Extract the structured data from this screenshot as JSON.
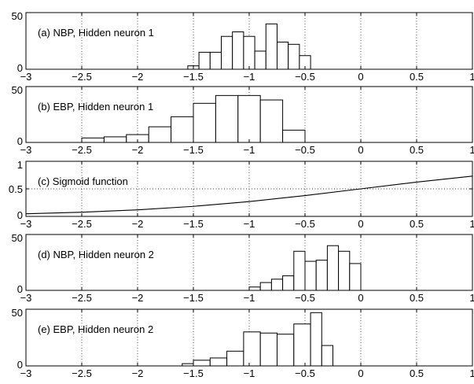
{
  "chart_data": [
    {
      "type": "bar",
      "label": "(a) NBP, Hidden neuron 1",
      "xlim": [
        -3,
        1
      ],
      "ylim": [
        0,
        50
      ],
      "xticks": [
        "−3",
        "−2.5",
        "−2",
        "−1.5",
        "−1",
        "−0.5",
        "0",
        "0.5",
        "1"
      ],
      "yticks": [
        "0",
        "50"
      ],
      "grid": true,
      "bars": [
        {
          "x0": -1.55,
          "x1": -1.45,
          "value": 3
        },
        {
          "x0": -1.45,
          "x1": -1.35,
          "value": 15
        },
        {
          "x0": -1.35,
          "x1": -1.25,
          "value": 15
        },
        {
          "x0": -1.25,
          "x1": -1.15,
          "value": 29
        },
        {
          "x0": -1.15,
          "x1": -1.05,
          "value": 33
        },
        {
          "x0": -1.05,
          "x1": -0.95,
          "value": 29
        },
        {
          "x0": -0.95,
          "x1": -0.85,
          "value": 16
        },
        {
          "x0": -0.85,
          "x1": -0.75,
          "value": 40
        },
        {
          "x0": -0.75,
          "x1": -0.65,
          "value": 24
        },
        {
          "x0": -0.65,
          "x1": -0.55,
          "value": 22
        },
        {
          "x0": -0.55,
          "x1": -0.45,
          "value": 12
        }
      ]
    },
    {
      "type": "bar",
      "label": "(b) EBP, Hidden neuron 1",
      "xlim": [
        -3,
        1
      ],
      "ylim": [
        0,
        50
      ],
      "xticks": [
        "−3",
        "−2.5",
        "−2",
        "−1.5",
        "−1",
        "−0.5",
        "0",
        "0.5",
        "1"
      ],
      "yticks": [
        "0",
        "50"
      ],
      "grid": true,
      "bars": [
        {
          "x0": -2.5,
          "x1": -2.3,
          "value": 4
        },
        {
          "x0": -2.3,
          "x1": -2.1,
          "value": 5
        },
        {
          "x0": -2.1,
          "x1": -1.9,
          "value": 7
        },
        {
          "x0": -1.9,
          "x1": -1.7,
          "value": 14
        },
        {
          "x0": -1.7,
          "x1": -1.5,
          "value": 23
        },
        {
          "x0": -1.5,
          "x1": -1.3,
          "value": 35
        },
        {
          "x0": -1.3,
          "x1": -1.1,
          "value": 42
        },
        {
          "x0": -1.1,
          "x1": -0.9,
          "value": 42
        },
        {
          "x0": -0.9,
          "x1": -0.7,
          "value": 38
        },
        {
          "x0": -0.7,
          "x1": -0.5,
          "value": 11
        }
      ]
    },
    {
      "type": "line",
      "label": "(c) Sigmoid function",
      "xlim": [
        -3,
        1
      ],
      "ylim": [
        0,
        1
      ],
      "xticks": [
        "−3",
        "−2.5",
        "−2",
        "−1.5",
        "−1",
        "−0.5",
        "0",
        "0.5",
        "1"
      ],
      "yticks": [
        "0",
        "0.5",
        "1"
      ],
      "grid": true,
      "x": [
        -3,
        -2.5,
        -2,
        -1.5,
        -1,
        -0.5,
        0,
        0.5,
        1
      ],
      "y": [
        0.047,
        0.076,
        0.119,
        0.182,
        0.269,
        0.378,
        0.5,
        0.622,
        0.731
      ]
    },
    {
      "type": "bar",
      "label": "(d) NBP, Hidden neuron 2",
      "xlim": [
        -3,
        1
      ],
      "ylim": [
        0,
        50
      ],
      "xticks": [
        "−3",
        "−2.5",
        "−2",
        "−1.5",
        "−1",
        "−0.5",
        "0",
        "0.5",
        "1"
      ],
      "yticks": [
        "0",
        "50"
      ],
      "grid": true,
      "bars": [
        {
          "x0": -1.0,
          "x1": -0.9,
          "value": 3
        },
        {
          "x0": -0.9,
          "x1": -0.8,
          "value": 7
        },
        {
          "x0": -0.8,
          "x1": -0.7,
          "value": 10
        },
        {
          "x0": -0.7,
          "x1": -0.6,
          "value": 13
        },
        {
          "x0": -0.6,
          "x1": -0.5,
          "value": 35
        },
        {
          "x0": -0.5,
          "x1": -0.4,
          "value": 26
        },
        {
          "x0": -0.4,
          "x1": -0.3,
          "value": 27
        },
        {
          "x0": -0.3,
          "x1": -0.2,
          "value": 40
        },
        {
          "x0": -0.2,
          "x1": -0.1,
          "value": 35
        },
        {
          "x0": -0.1,
          "x1": 0.0,
          "value": 24
        }
      ]
    },
    {
      "type": "bar",
      "label": "(e) EBP, Hidden neuron 2",
      "xlim": [
        -3,
        1
      ],
      "ylim": [
        0,
        50
      ],
      "xticks": [
        "−3",
        "−2.5",
        "−2",
        "−1.5",
        "−1",
        "−0.5",
        "0",
        "0.5",
        "1"
      ],
      "yticks": [
        "0",
        "50"
      ],
      "grid": true,
      "bars": [
        {
          "x0": -1.6,
          "x1": -1.5,
          "value": 2
        },
        {
          "x0": -1.5,
          "x1": -1.35,
          "value": 5
        },
        {
          "x0": -1.35,
          "x1": -1.2,
          "value": 7
        },
        {
          "x0": -1.2,
          "x1": -1.05,
          "value": 13
        },
        {
          "x0": -1.05,
          "x1": -0.9,
          "value": 30
        },
        {
          "x0": -0.9,
          "x1": -0.75,
          "value": 29
        },
        {
          "x0": -0.75,
          "x1": -0.6,
          "value": 28
        },
        {
          "x0": -0.6,
          "x1": -0.45,
          "value": 37
        },
        {
          "x0": -0.45,
          "x1": -0.35,
          "value": 47
        },
        {
          "x0": -0.35,
          "x1": -0.25,
          "value": 18
        }
      ]
    }
  ]
}
